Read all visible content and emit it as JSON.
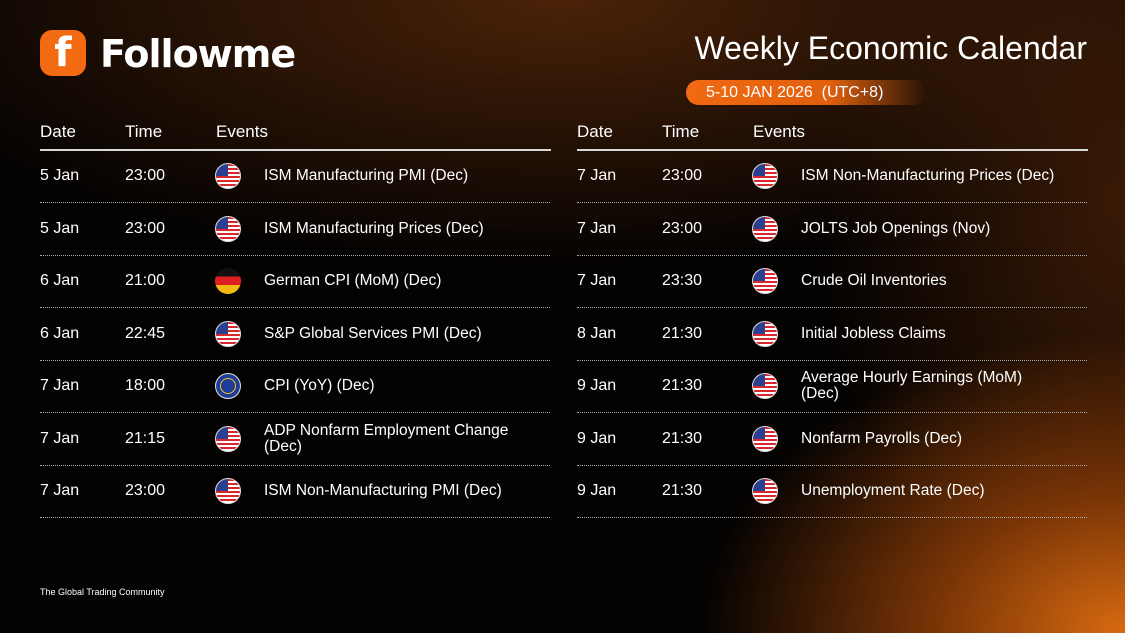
{
  "header": {
    "brand": "Followme",
    "title": "Weekly Economic Calendar",
    "date_range": "5-10 JAN 2026  (UTC+8)"
  },
  "tables": [
    {
      "columns": [
        "Date",
        "Time",
        "Events"
      ],
      "rows": [
        [
          "5 Jan",
          "23:00",
          "ISM Manufacturing PMI (Dec)"
        ],
        [
          "5 Jan",
          "23:00",
          "ISM Manufacturing Prices (Dec)"
        ],
        [
          "6 Jan",
          "21:00",
          "German CPI (MoM) (Dec)"
        ],
        [
          "6 Jan",
          "22:45",
          "S&P Global Services PMI (Dec)"
        ],
        [
          "7 Jan",
          "18:00",
          "CPI (YoY) (Dec)"
        ],
        [
          "7 Jan",
          "21:15",
          "ADP Nonfarm Employment Change (Dec)"
        ],
        [
          "7 Jan",
          "23:00",
          "ISM Non-Manufacturing PMI (Dec)"
        ]
      ]
    },
    {
      "columns": [
        "Date",
        "Time",
        "Events"
      ],
      "rows": [
        [
          "7 Jan",
          "23:00",
          "ISM Non-Manufacturing Prices (Dec)"
        ],
        [
          "7 Jan",
          "23:00",
          "JOLTS Job Openings (Nov)"
        ],
        [
          "7 Jan",
          "23:30",
          "Crude Oil Inventories"
        ],
        [
          "8 Jan",
          "21:30",
          "Initial Jobless Claims"
        ],
        [
          "9 Jan",
          "21:30",
          "Average Hourly Earnings (MoM) (Dec)"
        ],
        [
          "9 Jan",
          "21:30",
          "Nonfarm Payrolls (Dec)"
        ],
        [
          "9 Jan",
          "21:30",
          "Unemployment Rate (Dec)"
        ]
      ]
    }
  ],
  "footer": "The Global Trading Community"
}
